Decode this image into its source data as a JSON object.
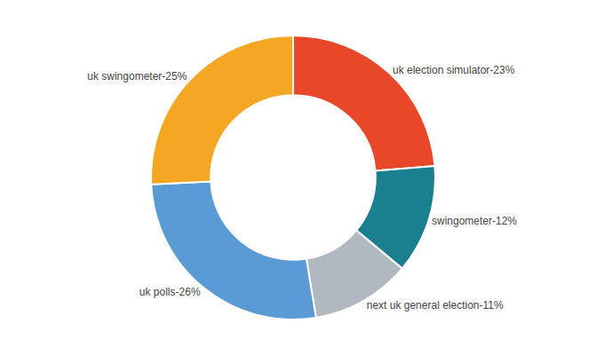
{
  "chart_data": {
    "type": "pie",
    "categories": [
      "uk election simulator",
      "swingometer",
      "next uk general election",
      "uk polls",
      "uk swingometer"
    ],
    "values": [
      23,
      12,
      11,
      26,
      25
    ],
    "value_labels": [
      "uk election simulator-23%",
      "swingometer-12%",
      "next uk general election-11%",
      "uk polls-26%",
      "uk swingometer-25%"
    ],
    "colors": [
      "#e8472a",
      "#1a7f8e",
      "#b0b8c0",
      "#5b9bd5",
      "#f5a623"
    ],
    "data_labels": true
  }
}
